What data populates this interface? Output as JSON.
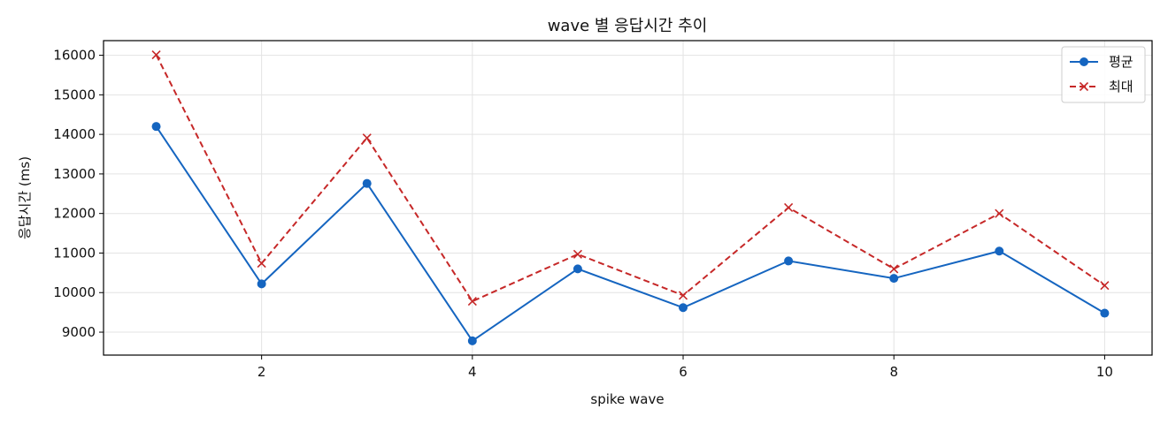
{
  "chart_data": {
    "type": "line",
    "title": "wave 별 응답시간 추이",
    "xlabel": "spike wave",
    "ylabel": "응답시간 (ms)",
    "x": [
      1,
      2,
      3,
      4,
      5,
      6,
      7,
      8,
      9,
      10
    ],
    "xlim": [
      0.5,
      10.45
    ],
    "ylim": [
      8420,
      16370
    ],
    "xticks": [
      2,
      4,
      6,
      8,
      10
    ],
    "yticks": [
      9000,
      10000,
      11000,
      12000,
      13000,
      14000,
      15000,
      16000
    ],
    "grid": true,
    "legend_position": "top-right",
    "series": [
      {
        "name": "평균",
        "values": [
          14200,
          10220,
          12760,
          8780,
          10600,
          9620,
          10800,
          10360,
          11050,
          9480
        ],
        "color": "#1565c0",
        "line_style": "solid",
        "marker": "circle"
      },
      {
        "name": "최대",
        "values": [
          16010,
          10740,
          13910,
          9780,
          10970,
          9930,
          12150,
          10600,
          12000,
          10180
        ],
        "color": "#c62828",
        "line_style": "dashed",
        "marker": "x"
      }
    ]
  }
}
